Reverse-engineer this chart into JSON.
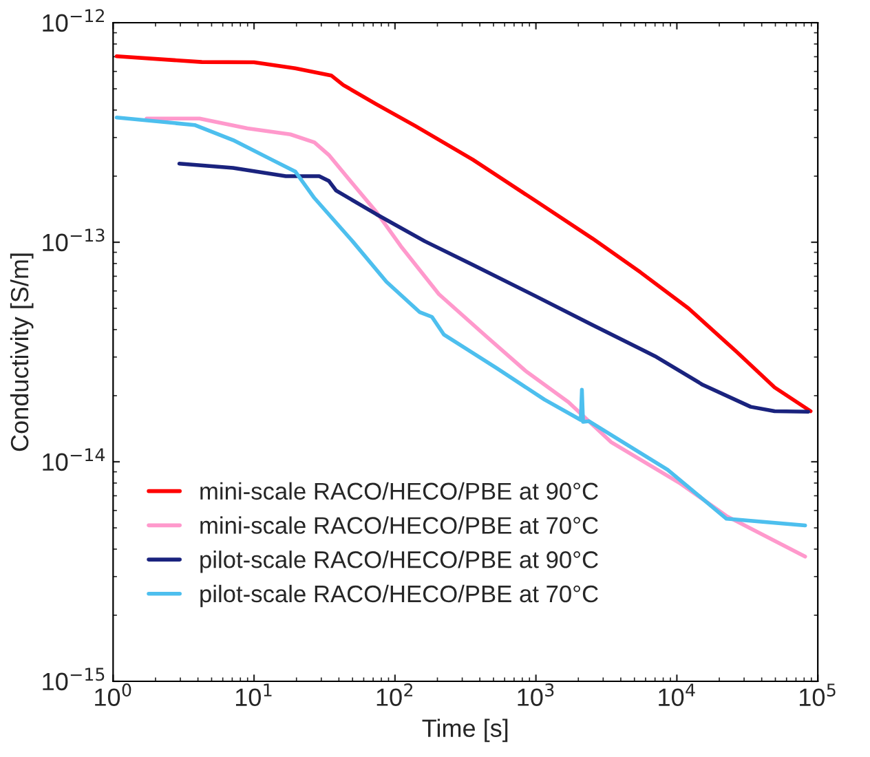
{
  "chart_data": {
    "type": "line",
    "xlabel": "Time [s]",
    "ylabel": "Conductivity [S/m]",
    "log": "xy",
    "xlim": [
      1,
      100000
    ],
    "ylim": [
      1e-15,
      1e-12
    ],
    "xticks": [
      {
        "value": 1,
        "label": "10$^{0}$"
      },
      {
        "value": 10,
        "label": "10$^{1}$"
      },
      {
        "value": 100,
        "label": "10$^{2}$"
      },
      {
        "value": 1000,
        "label": "10$^{3}$"
      },
      {
        "value": 10000,
        "label": "10$^{4}$"
      },
      {
        "value": 100000,
        "label": "10$^{5}$"
      }
    ],
    "yticks": [
      {
        "value": 1e-15,
        "label": "10$^{−15}$"
      },
      {
        "value": 1e-14,
        "label": "10$^{−14}$"
      },
      {
        "value": 1e-13,
        "label": "10$^{−13}$"
      },
      {
        "value": 1e-12,
        "label": "10$^{−12}$"
      }
    ],
    "legend": "bottom left",
    "grid": false,
    "marker": "none",
    "line_style": "solid",
    "series": [
      {
        "name": "mini-scale RACO/HECO/PBE at 90°C",
        "color": "#ff0000",
        "x": [
          1.06,
          4.26,
          10,
          19.6,
          35.3,
          43,
          74,
          139,
          356,
          985,
          2520,
          5510,
          12080,
          26400,
          49400,
          88900
        ],
        "values": [
          7.03e-13,
          6.62e-13,
          6.6e-13,
          6.2e-13,
          5.75e-13,
          5.2e-13,
          4.25e-13,
          3.39e-13,
          2.38e-13,
          1.55e-13,
          1.04e-13,
          7.3e-14,
          5e-14,
          3.18e-14,
          2.18e-14,
          1.7e-14
        ]
      },
      {
        "name": "mini-scale RACO/HECO/PBE at 70°C",
        "color": "#ff99cc",
        "x": [
          1.73,
          4.1,
          8.96,
          18.1,
          26.8,
          33.9,
          50,
          74,
          110,
          205,
          450,
          841,
          1700,
          3410,
          10600,
          22500,
          81300
        ],
        "values": [
          3.66e-13,
          3.66e-13,
          3.3e-13,
          3.1e-13,
          2.85e-13,
          2.5e-13,
          1.85e-13,
          1.37e-13,
          9.6e-14,
          5.8e-14,
          3.7e-14,
          2.6e-14,
          1.87e-14,
          1.23e-14,
          7.96e-15,
          5.66e-15,
          3.7e-15
        ]
      },
      {
        "name": "pilot-scale RACO/HECO/PBE at 90°C",
        "color": "#1a237e",
        "x": [
          2.95,
          7.1,
          16.8,
          29,
          34,
          38.2,
          74,
          163,
          356,
          985,
          2520,
          6980,
          15300,
          33400,
          49400,
          85500
        ],
        "values": [
          2.28e-13,
          2.18e-13,
          2e-13,
          2e-13,
          1.9e-13,
          1.72e-13,
          1.34e-13,
          1.01e-13,
          7.9e-14,
          5.7e-14,
          4.2e-14,
          3.03e-14,
          2.24e-14,
          1.78e-14,
          1.7e-14,
          1.69e-14
        ]
      },
      {
        "name": "pilot-scale RACO/HECO/PBE at 70°C",
        "color": "#4dbfee",
        "x": [
          1.06,
          3.79,
          7.1,
          13.3,
          19.6,
          26.8,
          50,
          87,
          150,
          183,
          222,
          526,
          1150,
          2080,
          2120,
          2160,
          2380,
          8600,
          22500,
          81300
        ],
        "values": [
          3.7e-13,
          3.42e-13,
          2.92e-13,
          2.38e-13,
          2.1e-13,
          1.59e-13,
          1.01e-13,
          6.6e-14,
          4.8e-14,
          4.57e-14,
          3.8e-14,
          2.67e-14,
          1.92e-14,
          1.55e-14,
          2.13e-14,
          1.52e-14,
          1.53e-14,
          9.2e-15,
          5.5e-15,
          5.13e-15
        ]
      }
    ]
  }
}
